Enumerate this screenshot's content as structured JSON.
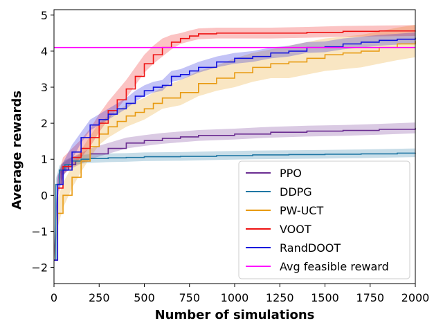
{
  "chart_data": {
    "type": "line",
    "xlabel": "Number of simulations",
    "ylabel": "Average rewards",
    "xlim": [
      0,
      2000
    ],
    "ylim": [
      -2.45,
      5.15
    ],
    "xticks": [
      0,
      250,
      500,
      750,
      1000,
      1250,
      1500,
      1750,
      2000
    ],
    "yticks": [
      -2,
      -1,
      0,
      1,
      2,
      3,
      4,
      5
    ],
    "xtick_labels": [
      "0",
      "250",
      "500",
      "750",
      "1000",
      "1250",
      "1500",
      "1750",
      "2000"
    ],
    "ytick_labels": [
      "−2",
      "−1",
      "0",
      "1",
      "2",
      "3",
      "4",
      "5"
    ],
    "legend_position": "lower-right",
    "grid": false,
    "series": [
      {
        "name": "PPO",
        "color": "#6a2c91",
        "x": [
          0,
          20,
          40,
          80,
          120,
          200,
          300,
          400,
          500,
          600,
          700,
          800,
          1000,
          1200,
          1400,
          1600,
          1800,
          2000
        ],
        "y": [
          -1.8,
          0.3,
          0.7,
          0.85,
          0.95,
          1.15,
          1.3,
          1.45,
          1.52,
          1.58,
          1.62,
          1.66,
          1.7,
          1.75,
          1.78,
          1.8,
          1.83,
          1.87
        ],
        "band": [
          0.12,
          0.12,
          0.15,
          0.15,
          0.15,
          0.15,
          0.15,
          0.15,
          0.15,
          0.15,
          0.15,
          0.15,
          0.15,
          0.15,
          0.15,
          0.15,
          0.15,
          0.15
        ]
      },
      {
        "name": "DDPG",
        "color": "#1f77a4",
        "x": [
          0,
          10,
          30,
          60,
          100,
          150,
          200,
          300,
          400,
          500,
          700,
          900,
          1100,
          1300,
          1500,
          1700,
          1900,
          2000
        ],
        "y": [
          -1.8,
          0.3,
          0.7,
          0.85,
          0.95,
          1.0,
          1.02,
          1.04,
          1.05,
          1.07,
          1.08,
          1.1,
          1.12,
          1.13,
          1.14,
          1.15,
          1.17,
          1.18
        ],
        "band": [
          0.12,
          0.15,
          0.12,
          0.12,
          0.12,
          0.12,
          0.12,
          0.12,
          0.12,
          0.12,
          0.12,
          0.12,
          0.12,
          0.12,
          0.12,
          0.12,
          0.12,
          0.12
        ]
      },
      {
        "name": "PW-UCT",
        "color": "#e89a10",
        "x": [
          0,
          20,
          50,
          100,
          150,
          200,
          250,
          300,
          350,
          400,
          450,
          500,
          550,
          600,
          700,
          800,
          900,
          1000,
          1100,
          1200,
          1300,
          1400,
          1500,
          1600,
          1700,
          1800,
          1900,
          2000
        ],
        "y": [
          -1.8,
          -0.5,
          0.0,
          0.5,
          0.95,
          1.35,
          1.7,
          1.9,
          2.05,
          2.2,
          2.3,
          2.4,
          2.55,
          2.7,
          2.85,
          3.1,
          3.25,
          3.4,
          3.55,
          3.65,
          3.7,
          3.8,
          3.9,
          3.95,
          4.0,
          4.1,
          4.2,
          4.28
        ],
        "band": [
          0.2,
          0.4,
          0.35,
          0.3,
          0.3,
          0.3,
          0.3,
          0.3,
          0.3,
          0.3,
          0.3,
          0.3,
          0.3,
          0.3,
          0.35,
          0.35,
          0.35,
          0.4,
          0.4,
          0.4,
          0.45,
          0.45,
          0.45,
          0.45,
          0.45,
          0.45,
          0.45,
          0.45
        ]
      },
      {
        "name": "VOOT",
        "color": "#ee1111",
        "x": [
          0,
          20,
          50,
          100,
          150,
          200,
          250,
          300,
          350,
          400,
          450,
          500,
          550,
          600,
          650,
          700,
          750,
          800,
          900,
          1000,
          1200,
          1400,
          1600,
          1800,
          2000
        ],
        "y": [
          -1.8,
          0.2,
          0.8,
          1.05,
          1.3,
          1.6,
          2.0,
          2.35,
          2.65,
          2.95,
          3.3,
          3.65,
          3.9,
          4.1,
          4.25,
          4.35,
          4.42,
          4.48,
          4.5,
          4.5,
          4.5,
          4.52,
          4.55,
          4.56,
          4.57
        ],
        "band": [
          0.2,
          0.3,
          0.25,
          0.25,
          0.25,
          0.25,
          0.25,
          0.25,
          0.25,
          0.25,
          0.25,
          0.25,
          0.25,
          0.25,
          0.2,
          0.15,
          0.15,
          0.15,
          0.15,
          0.15,
          0.15,
          0.15,
          0.15,
          0.15,
          0.15
        ]
      },
      {
        "name": "RandDOOT",
        "color": "#1111dd",
        "x": [
          0,
          20,
          50,
          100,
          150,
          200,
          250,
          300,
          350,
          400,
          450,
          500,
          550,
          600,
          650,
          700,
          750,
          800,
          900,
          1000,
          1100,
          1200,
          1300,
          1400,
          1500,
          1600,
          1700,
          1800,
          1900,
          2000
        ],
        "y": [
          -1.8,
          0.3,
          0.7,
          1.2,
          1.6,
          1.95,
          2.1,
          2.25,
          2.4,
          2.55,
          2.75,
          2.9,
          3.0,
          3.05,
          3.3,
          3.35,
          3.45,
          3.55,
          3.7,
          3.8,
          3.85,
          3.95,
          4.0,
          4.1,
          4.12,
          4.2,
          4.25,
          4.3,
          4.33,
          4.37
        ],
        "band": [
          0.2,
          0.25,
          0.2,
          0.2,
          0.15,
          0.15,
          0.15,
          0.15,
          0.15,
          0.15,
          0.15,
          0.15,
          0.15,
          0.15,
          0.15,
          0.15,
          0.15,
          0.15,
          0.15,
          0.15,
          0.15,
          0.15,
          0.15,
          0.15,
          0.15,
          0.15,
          0.15,
          0.15,
          0.15,
          0.15
        ]
      },
      {
        "name": "Avg feasible reward",
        "color": "#ff00ff",
        "x": [
          0,
          2000
        ],
        "y": [
          4.1,
          4.1
        ],
        "band": null
      }
    ]
  }
}
